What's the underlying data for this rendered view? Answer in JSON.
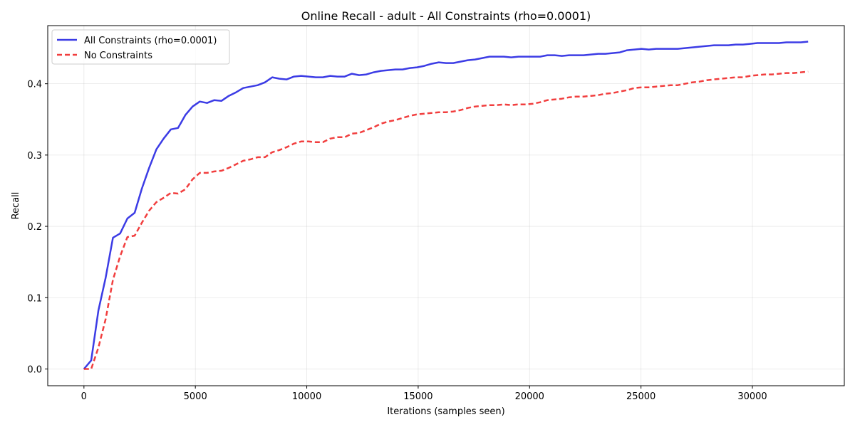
{
  "chart_data": {
    "type": "line",
    "title": "Online Recall - adult - All Constraints (rho=0.0001)",
    "xlabel": "Iterations (samples seen)",
    "ylabel": "Recall",
    "xlim": [
      -1625,
      34125
    ],
    "ylim": [
      -0.0235,
      0.4815
    ],
    "xticks": [
      0,
      5000,
      10000,
      15000,
      20000,
      25000,
      30000
    ],
    "yticks": [
      0.0,
      0.1,
      0.2,
      0.3,
      0.4
    ],
    "ytick_labels": [
      "0.0",
      "0.1",
      "0.2",
      "0.3",
      "0.4"
    ],
    "grid": true,
    "legend_position": "upper-left",
    "series": [
      {
        "name": "All Constraints (rho=0.0001)",
        "color": "#1a1ae0",
        "style": "solid",
        "points": [
          [
            0,
            0.0
          ],
          [
            325,
            0.012
          ],
          [
            650,
            0.082
          ],
          [
            975,
            0.128
          ],
          [
            1300,
            0.184
          ],
          [
            1625,
            0.19
          ],
          [
            1950,
            0.211
          ],
          [
            2275,
            0.219
          ],
          [
            2600,
            0.253
          ],
          [
            2925,
            0.282
          ],
          [
            3250,
            0.308
          ],
          [
            3575,
            0.323
          ],
          [
            3900,
            0.336
          ],
          [
            4225,
            0.338
          ],
          [
            4550,
            0.356
          ],
          [
            4875,
            0.368
          ],
          [
            5200,
            0.375
          ],
          [
            5525,
            0.373
          ],
          [
            5850,
            0.377
          ],
          [
            6175,
            0.376
          ],
          [
            6500,
            0.383
          ],
          [
            6825,
            0.388
          ],
          [
            7150,
            0.394
          ],
          [
            7475,
            0.396
          ],
          [
            7800,
            0.398
          ],
          [
            8125,
            0.402
          ],
          [
            8450,
            0.409
          ],
          [
            8775,
            0.407
          ],
          [
            9100,
            0.406
          ],
          [
            9425,
            0.41
          ],
          [
            9750,
            0.411
          ],
          [
            10075,
            0.41
          ],
          [
            10400,
            0.409
          ],
          [
            10725,
            0.409
          ],
          [
            11050,
            0.411
          ],
          [
            11375,
            0.41
          ],
          [
            11700,
            0.41
          ],
          [
            12025,
            0.414
          ],
          [
            12350,
            0.412
          ],
          [
            12675,
            0.413
          ],
          [
            13000,
            0.416
          ],
          [
            13325,
            0.418
          ],
          [
            13650,
            0.419
          ],
          [
            13975,
            0.42
          ],
          [
            14300,
            0.42
          ],
          [
            14625,
            0.422
          ],
          [
            14950,
            0.423
          ],
          [
            15275,
            0.425
          ],
          [
            15600,
            0.428
          ],
          [
            15925,
            0.43
          ],
          [
            16250,
            0.429
          ],
          [
            16575,
            0.429
          ],
          [
            16900,
            0.431
          ],
          [
            17225,
            0.433
          ],
          [
            17550,
            0.434
          ],
          [
            17875,
            0.436
          ],
          [
            18200,
            0.438
          ],
          [
            18525,
            0.438
          ],
          [
            18850,
            0.438
          ],
          [
            19175,
            0.437
          ],
          [
            19500,
            0.438
          ],
          [
            19825,
            0.438
          ],
          [
            20150,
            0.438
          ],
          [
            20475,
            0.438
          ],
          [
            20800,
            0.44
          ],
          [
            21125,
            0.44
          ],
          [
            21450,
            0.439
          ],
          [
            21775,
            0.44
          ],
          [
            22100,
            0.44
          ],
          [
            22425,
            0.44
          ],
          [
            22750,
            0.441
          ],
          [
            23075,
            0.442
          ],
          [
            23400,
            0.442
          ],
          [
            23725,
            0.443
          ],
          [
            24050,
            0.444
          ],
          [
            24375,
            0.447
          ],
          [
            24700,
            0.448
          ],
          [
            25025,
            0.449
          ],
          [
            25350,
            0.448
          ],
          [
            25675,
            0.449
          ],
          [
            26000,
            0.449
          ],
          [
            26325,
            0.449
          ],
          [
            26650,
            0.449
          ],
          [
            26975,
            0.45
          ],
          [
            27300,
            0.451
          ],
          [
            27625,
            0.452
          ],
          [
            27950,
            0.453
          ],
          [
            28275,
            0.454
          ],
          [
            28600,
            0.454
          ],
          [
            28925,
            0.454
          ],
          [
            29250,
            0.455
          ],
          [
            29575,
            0.455
          ],
          [
            29900,
            0.456
          ],
          [
            30225,
            0.457
          ],
          [
            30550,
            0.457
          ],
          [
            30875,
            0.457
          ],
          [
            31200,
            0.457
          ],
          [
            31525,
            0.458
          ],
          [
            31850,
            0.458
          ],
          [
            32175,
            0.458
          ],
          [
            32500,
            0.459
          ]
        ]
      },
      {
        "name": "No Constraints",
        "color": "#ee1c1c",
        "style": "dashed",
        "points": [
          [
            0,
            0.0
          ],
          [
            325,
            0.0
          ],
          [
            650,
            0.03
          ],
          [
            975,
            0.07
          ],
          [
            1300,
            0.125
          ],
          [
            1625,
            0.158
          ],
          [
            1950,
            0.185
          ],
          [
            2275,
            0.187
          ],
          [
            2600,
            0.205
          ],
          [
            2925,
            0.222
          ],
          [
            3250,
            0.234
          ],
          [
            3575,
            0.24
          ],
          [
            3900,
            0.247
          ],
          [
            4225,
            0.246
          ],
          [
            4550,
            0.252
          ],
          [
            4875,
            0.266
          ],
          [
            5200,
            0.275
          ],
          [
            5525,
            0.275
          ],
          [
            5850,
            0.277
          ],
          [
            6175,
            0.278
          ],
          [
            6500,
            0.282
          ],
          [
            6825,
            0.287
          ],
          [
            7150,
            0.292
          ],
          [
            7475,
            0.294
          ],
          [
            7800,
            0.297
          ],
          [
            8125,
            0.297
          ],
          [
            8450,
            0.304
          ],
          [
            8775,
            0.307
          ],
          [
            9100,
            0.311
          ],
          [
            9425,
            0.316
          ],
          [
            9750,
            0.319
          ],
          [
            10075,
            0.319
          ],
          [
            10400,
            0.318
          ],
          [
            10725,
            0.318
          ],
          [
            11050,
            0.323
          ],
          [
            11375,
            0.325
          ],
          [
            11700,
            0.325
          ],
          [
            12025,
            0.33
          ],
          [
            12350,
            0.331
          ],
          [
            12675,
            0.335
          ],
          [
            13000,
            0.339
          ],
          [
            13325,
            0.344
          ],
          [
            13650,
            0.347
          ],
          [
            13975,
            0.349
          ],
          [
            14300,
            0.352
          ],
          [
            14625,
            0.355
          ],
          [
            14950,
            0.357
          ],
          [
            15275,
            0.358
          ],
          [
            15600,
            0.359
          ],
          [
            15925,
            0.36
          ],
          [
            16250,
            0.36
          ],
          [
            16575,
            0.361
          ],
          [
            16900,
            0.363
          ],
          [
            17225,
            0.366
          ],
          [
            17550,
            0.368
          ],
          [
            17875,
            0.369
          ],
          [
            18200,
            0.37
          ],
          [
            18525,
            0.37
          ],
          [
            18850,
            0.371
          ],
          [
            19175,
            0.37
          ],
          [
            19500,
            0.371
          ],
          [
            19825,
            0.371
          ],
          [
            20150,
            0.372
          ],
          [
            20475,
            0.374
          ],
          [
            20800,
            0.377
          ],
          [
            21125,
            0.378
          ],
          [
            21450,
            0.379
          ],
          [
            21775,
            0.381
          ],
          [
            22100,
            0.382
          ],
          [
            22425,
            0.382
          ],
          [
            22750,
            0.383
          ],
          [
            23075,
            0.384
          ],
          [
            23400,
            0.386
          ],
          [
            23725,
            0.387
          ],
          [
            24050,
            0.389
          ],
          [
            24375,
            0.391
          ],
          [
            24700,
            0.394
          ],
          [
            25025,
            0.395
          ],
          [
            25350,
            0.395
          ],
          [
            25675,
            0.396
          ],
          [
            26000,
            0.397
          ],
          [
            26325,
            0.398
          ],
          [
            26650,
            0.398
          ],
          [
            26975,
            0.4
          ],
          [
            27300,
            0.402
          ],
          [
            27625,
            0.403
          ],
          [
            27950,
            0.405
          ],
          [
            28275,
            0.406
          ],
          [
            28600,
            0.407
          ],
          [
            28925,
            0.408
          ],
          [
            29250,
            0.409
          ],
          [
            29575,
            0.409
          ],
          [
            29900,
            0.411
          ],
          [
            30225,
            0.412
          ],
          [
            30550,
            0.413
          ],
          [
            30875,
            0.413
          ],
          [
            31200,
            0.414
          ],
          [
            31525,
            0.415
          ],
          [
            31850,
            0.415
          ],
          [
            32175,
            0.416
          ],
          [
            32500,
            0.417
          ]
        ]
      }
    ]
  }
}
